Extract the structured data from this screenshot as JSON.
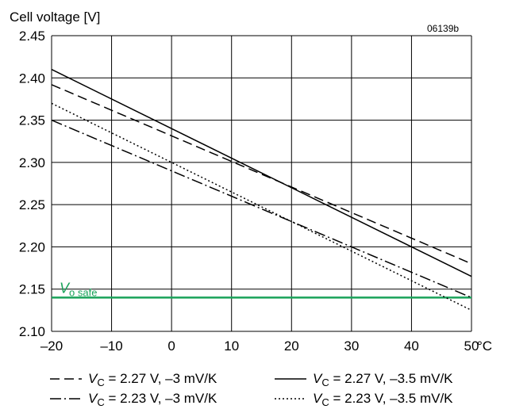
{
  "chart_data": {
    "type": "line",
    "ylabel": "Cell voltage [V]",
    "figure_code": "06139b",
    "x_unit": "°C",
    "xlim": [
      -20,
      50
    ],
    "ylim": [
      2.1,
      2.45
    ],
    "x_ticks": [
      "–20",
      "–10",
      "0",
      "10",
      "20",
      "30",
      "40",
      "50"
    ],
    "y_ticks": [
      "2.10",
      "2.15",
      "2.20",
      "2.25",
      "2.30",
      "2.35",
      "2.40",
      "2.45"
    ],
    "grid": true,
    "series": [
      {
        "legend": {
          "V": "V",
          "sub": "C",
          "rest": " = 2.27 V, –3 mV/K"
        },
        "style": "dashed",
        "color": "#000000",
        "x": [
          -20,
          50
        ],
        "y": [
          2.392,
          2.18
        ]
      },
      {
        "legend": {
          "V": "V",
          "sub": "C",
          "rest": " = 2.27 V, –3.5 mV/K"
        },
        "style": "solid",
        "color": "#000000",
        "x": [
          -20,
          50
        ],
        "y": [
          2.41,
          2.165
        ]
      },
      {
        "legend": {
          "V": "V",
          "sub": "C",
          "rest": " = 2.23 V, –3 mV/K"
        },
        "style": "dashdot",
        "color": "#000000",
        "x": [
          -20,
          50
        ],
        "y": [
          2.35,
          2.14
        ]
      },
      {
        "legend": {
          "V": "V",
          "sub": "C",
          "rest": " = 2.23 V, –3.5 mV/K"
        },
        "style": "dotted",
        "color": "#000000",
        "x": [
          -20,
          50
        ],
        "y": [
          2.37,
          2.125
        ]
      }
    ],
    "reference_line": {
      "label_main": "V",
      "label_sub": "o safe",
      "y": 2.14,
      "color": "#1aa35a"
    }
  }
}
